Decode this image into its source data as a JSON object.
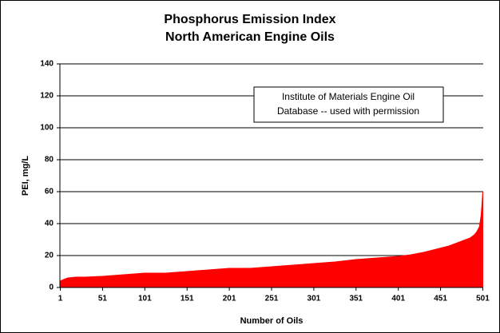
{
  "chart_data": {
    "type": "area",
    "title": [
      "Phosphorus Emission Index",
      "North American Engine Oils"
    ],
    "xlabel": "Number of Oils",
    "ylabel": "PEI, mg/L",
    "annotation": [
      "Institute of Materials Engine Oil",
      "Database -- used with permission"
    ],
    "x": [
      1,
      5,
      10,
      20,
      30,
      51,
      76,
      101,
      126,
      151,
      176,
      201,
      226,
      251,
      276,
      301,
      326,
      351,
      376,
      401,
      416,
      431,
      446,
      461,
      471,
      481,
      486,
      491,
      494,
      497,
      499,
      500,
      501
    ],
    "values": [
      4,
      5,
      6,
      6.5,
      6.5,
      7,
      8,
      9,
      9,
      10,
      11,
      12,
      12,
      13,
      14,
      15,
      16,
      17.5,
      18.5,
      19.5,
      20.5,
      22,
      24,
      26,
      28,
      30,
      31,
      33,
      35,
      38,
      45,
      52,
      60
    ],
    "color": "#ff0000",
    "xlim": [
      0.5,
      501.5
    ],
    "xticks": [
      1,
      51,
      101,
      151,
      201,
      251,
      301,
      351,
      401,
      451,
      501
    ],
    "ylim": [
      0,
      140
    ],
    "yticks": [
      0,
      20,
      40,
      60,
      80,
      100,
      120,
      140
    ],
    "grid": true
  }
}
